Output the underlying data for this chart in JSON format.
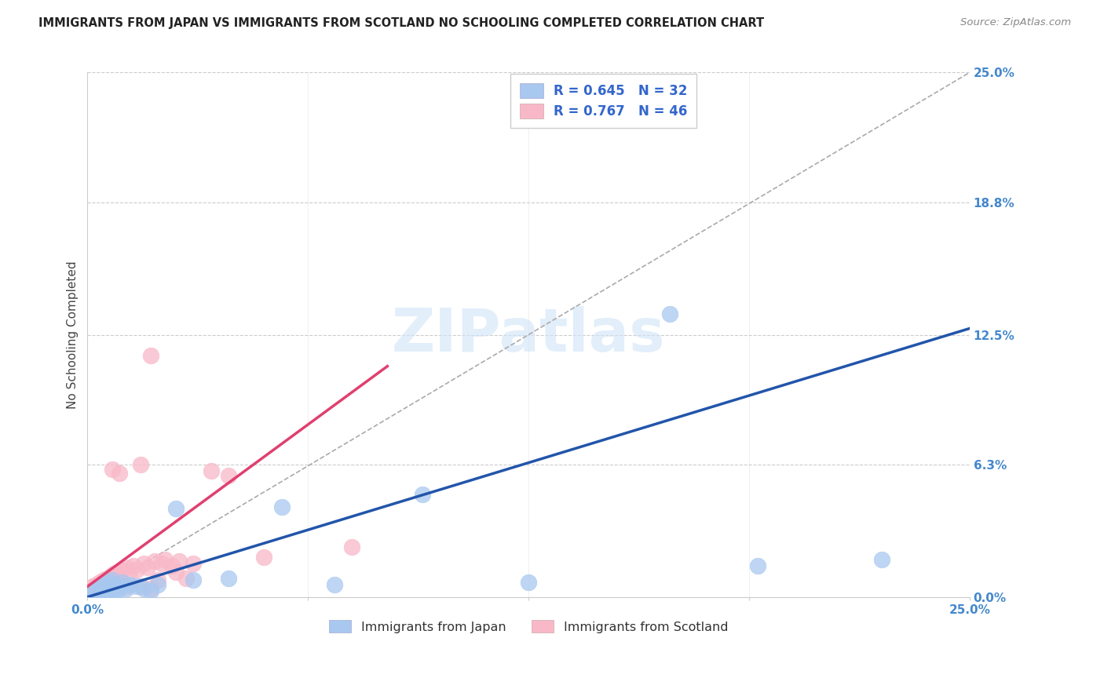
{
  "title": "IMMIGRANTS FROM JAPAN VS IMMIGRANTS FROM SCOTLAND NO SCHOOLING COMPLETED CORRELATION CHART",
  "source": "Source: ZipAtlas.com",
  "ylabel": "No Schooling Completed",
  "ytick_vals": [
    0.0,
    6.3,
    12.5,
    18.8,
    25.0
  ],
  "xtick_vals": [
    0.0,
    6.25,
    12.5,
    18.75,
    25.0
  ],
  "xtick_labels": [
    "0.0%",
    "",
    "",
    "",
    "25.0%"
  ],
  "xmin": 0.0,
  "xmax": 25.0,
  "ymin": 0.0,
  "ymax": 25.0,
  "japan_color": "#a8c8f0",
  "japan_line_color": "#2255aa",
  "scotland_color": "#f8b8c8",
  "scotland_line_color": "#e04070",
  "japan_R": 0.645,
  "japan_N": 32,
  "scotland_R": 0.767,
  "scotland_N": 46,
  "japan_line_x0": 0.0,
  "japan_line_y0": 0.0,
  "japan_line_x1": 25.0,
  "japan_line_y1": 12.8,
  "scotland_line_x0": 0.0,
  "scotland_line_y0": 0.5,
  "scotland_line_x1": 8.5,
  "scotland_line_y1": 11.0,
  "japan_scatter_x": [
    0.1,
    0.2,
    0.3,
    0.35,
    0.4,
    0.45,
    0.5,
    0.55,
    0.6,
    0.65,
    0.7,
    0.75,
    0.8,
    0.85,
    0.9,
    1.0,
    1.1,
    1.2,
    1.4,
    1.6,
    1.8,
    2.0,
    2.5,
    3.0,
    4.0,
    5.5,
    7.0,
    9.5,
    12.5,
    16.5,
    19.0,
    22.5
  ],
  "japan_scatter_y": [
    0.2,
    0.3,
    0.4,
    0.2,
    0.5,
    0.3,
    0.6,
    0.2,
    0.7,
    0.3,
    0.8,
    0.2,
    0.6,
    0.3,
    0.5,
    0.7,
    0.4,
    0.6,
    0.5,
    0.4,
    0.3,
    0.6,
    4.2,
    0.8,
    0.9,
    4.3,
    0.6,
    4.9,
    0.7,
    13.5,
    1.5,
    1.8
  ],
  "scotland_scatter_x": [
    0.05,
    0.1,
    0.15,
    0.2,
    0.25,
    0.3,
    0.35,
    0.4,
    0.45,
    0.5,
    0.55,
    0.6,
    0.65,
    0.7,
    0.75,
    0.8,
    0.85,
    0.9,
    1.0,
    1.1,
    1.2,
    1.3,
    1.4,
    1.5,
    1.6,
    1.7,
    1.8,
    1.9,
    2.0,
    2.1,
    2.2,
    2.4,
    2.6,
    2.8,
    3.0,
    3.5,
    4.0,
    5.0,
    1.5,
    1.8,
    2.5,
    0.7,
    0.9,
    1.1,
    7.5,
    0.3
  ],
  "scotland_scatter_y": [
    0.2,
    0.3,
    0.5,
    0.4,
    0.6,
    0.5,
    0.7,
    0.6,
    0.8,
    0.7,
    0.9,
    0.8,
    1.0,
    0.9,
    1.1,
    1.0,
    1.2,
    1.1,
    1.3,
    1.4,
    1.2,
    1.5,
    1.3,
    0.5,
    1.6,
    1.4,
    0.4,
    1.7,
    0.8,
    1.6,
    1.8,
    1.5,
    1.7,
    0.9,
    1.6,
    6.0,
    5.8,
    1.9,
    6.3,
    11.5,
    1.2,
    6.1,
    5.9,
    0.5,
    2.4,
    0.3
  ],
  "watermark_text": "ZIPatlas",
  "background_color": "#ffffff",
  "grid_color": "#cccccc",
  "title_color": "#222222",
  "axis_tick_color": "#4488cc",
  "legend_text_color": "#3366cc"
}
